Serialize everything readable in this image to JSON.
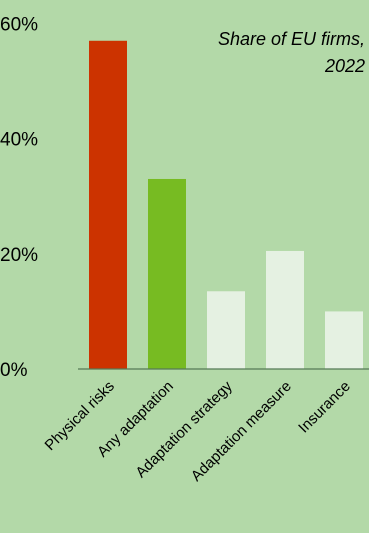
{
  "chart_data": {
    "type": "bar",
    "title_lines": [
      "Share of EU firms,",
      "2022"
    ],
    "categories": [
      "Physical risks",
      "Any adaptation",
      "Adaptation strategy",
      "Adaptation measure",
      "Insurance"
    ],
    "values": [
      57,
      33,
      13.5,
      20.5,
      10
    ],
    "bar_colors": [
      "#cc3300",
      "#77bb22",
      "#e5f1e2",
      "#e5f1e2",
      "#e5f1e2"
    ],
    "yticks": [
      0,
      20,
      40,
      60
    ],
    "ytick_labels": [
      "0%",
      "20%",
      "40%",
      "60%"
    ],
    "ylim": [
      0,
      60
    ],
    "grid": false,
    "background_color": "#b3d9a8",
    "axis_color": "#557a55"
  }
}
